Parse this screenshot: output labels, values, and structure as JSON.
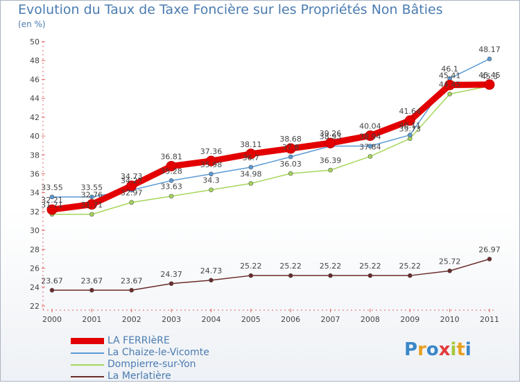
{
  "title": "Evolution du Taux de Taxe Foncière sur les Propriétés Non Bâties",
  "unit_label": "(en %)",
  "brand": "Proxiti",
  "chart_data": {
    "type": "line",
    "categories": [
      "2000",
      "2001",
      "2002",
      "2003",
      "2004",
      "2005",
      "2006",
      "2007",
      "2008",
      "2009",
      "2010",
      "2011"
    ],
    "ylim": [
      22,
      50
    ],
    "yticks": [
      22,
      24,
      26,
      28,
      30,
      32,
      34,
      36,
      38,
      40,
      42,
      44,
      46,
      48,
      50
    ],
    "grid": false,
    "legend_position": "bottom-left",
    "series": [
      {
        "name": "LA FERRIèRE",
        "color": "#e30000",
        "values": [
          32.21,
          32.76,
          34.73,
          36.81,
          37.36,
          38.11,
          38.68,
          39.26,
          40.04,
          41.64,
          45.41,
          45.45
        ],
        "labels": [
          "32.21",
          "32.76",
          "34.73",
          "36.81",
          "37.36",
          "38.11",
          "38.68",
          "39.26",
          "40.04",
          "41.64",
          "45.41",
          "45.45"
        ]
      },
      {
        "name": "La Chaize-le-Vicomte",
        "color": "#5b9bd5",
        "values": [
          33.55,
          33.55,
          34.27,
          35.28,
          35.98,
          36.7,
          37.8,
          38.93,
          38.94,
          40.11,
          46.1,
          48.17
        ],
        "labels": [
          "33.55",
          "33.55",
          "34.27",
          "35.28",
          "35.98",
          "36.7",
          "37.8",
          "38.93",
          "38.94",
          "40.11",
          "46.1",
          "48.17"
        ]
      },
      {
        "name": "Dompierre-sur-Yon",
        "color": "#a5d65a",
        "values": [
          31.71,
          31.71,
          32.97,
          33.63,
          34.3,
          34.98,
          36.03,
          36.39,
          37.84,
          39.73,
          44.45,
          45.3
        ],
        "labels": [
          "31.71",
          "31.71",
          "32.97",
          "33.63",
          "34.3",
          "34.98",
          "36.03",
          "36.39",
          "37.84",
          "39.73",
          "44.45",
          "45.3"
        ]
      },
      {
        "name": "La Merlatière",
        "color": "#6b2b2b",
        "values": [
          23.67,
          23.67,
          23.67,
          24.37,
          24.73,
          25.22,
          25.22,
          25.22,
          25.22,
          25.22,
          25.72,
          26.97
        ],
        "labels": [
          "23.67",
          "23.67",
          "23.67",
          "24.37",
          "24.73",
          "25.22",
          "25.22",
          "25.22",
          "25.22",
          "25.22",
          "25.72",
          "26.97"
        ]
      }
    ]
  }
}
